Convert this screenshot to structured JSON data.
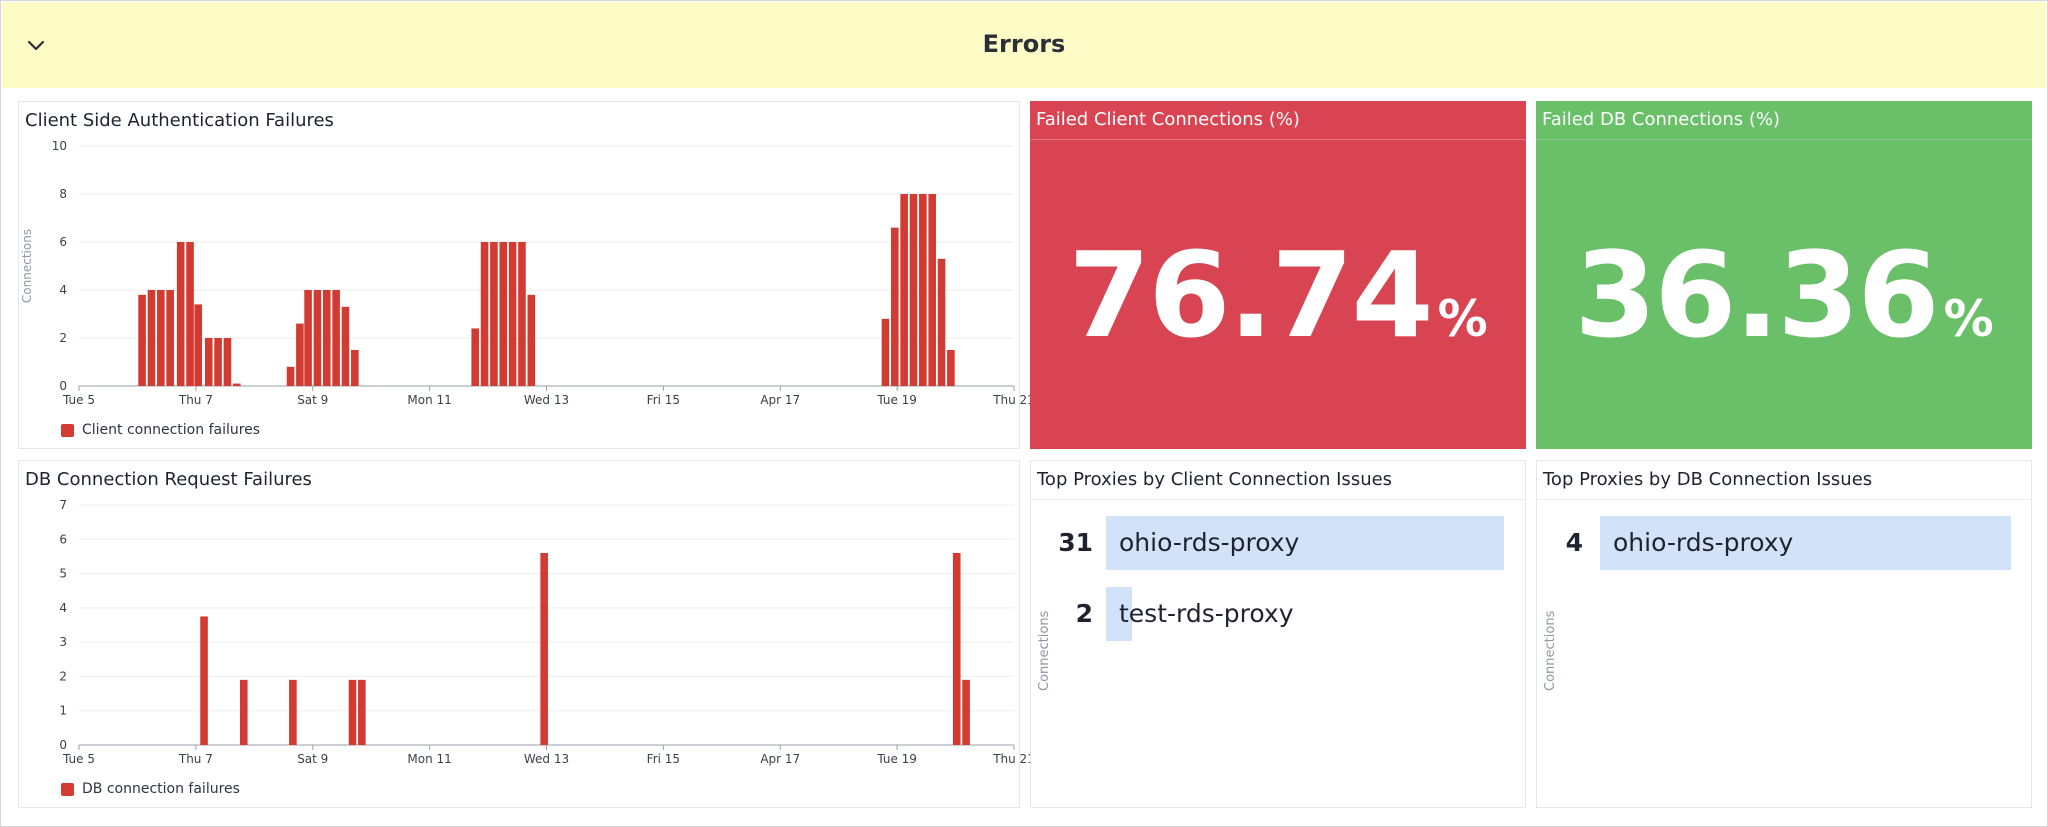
{
  "group": {
    "title": "Errors",
    "collapse_icon": "chevron-down-icon"
  },
  "widgets": {
    "auth_failures": {
      "title": "Client Side Authentication Failures",
      "legend": "Client connection failures"
    },
    "db_failures": {
      "title": "DB Connection Request Failures",
      "legend": "DB connection failures"
    },
    "failed_client_pct": {
      "title": "Failed Client Connections (%)",
      "value": "76.74",
      "unit": "%",
      "color": "#d94452"
    },
    "failed_db_pct": {
      "title": "Failed DB Connections (%)",
      "value": "36.36",
      "unit": "%",
      "color": "#6abf69"
    },
    "top_client": {
      "title": "Top Proxies by Client Connection Issues",
      "axis_label": "Connections",
      "rows": [
        {
          "value": "31",
          "label": "ohio-rds-proxy",
          "fraction": 1.0
        },
        {
          "value": "2",
          "label": "test-rds-proxy",
          "fraction": 0.065
        }
      ]
    },
    "top_db": {
      "title": "Top Proxies by DB Connection Issues",
      "axis_label": "Connections",
      "rows": [
        {
          "value": "4",
          "label": "ohio-rds-proxy",
          "fraction": 1.0
        }
      ]
    }
  },
  "colors": {
    "bar": "#d13b32",
    "header_bg": "#fdfbc6",
    "toplist_bar": "#d2e2f9"
  },
  "chart_data": [
    {
      "type": "bar",
      "title": "Client Side Authentication Failures",
      "ylabel": "Connections",
      "ylim": [
        0,
        10
      ],
      "yticks": [
        0,
        2,
        4,
        6,
        8,
        10
      ],
      "xlim": [
        0,
        16
      ],
      "xticks": [
        {
          "x": 0,
          "label": "Tue 5"
        },
        {
          "x": 2,
          "label": "Thu 7"
        },
        {
          "x": 4,
          "label": "Sat 9"
        },
        {
          "x": 6,
          "label": "Mon 11"
        },
        {
          "x": 8,
          "label": "Wed 13"
        },
        {
          "x": 10,
          "label": "Fri 15"
        },
        {
          "x": 12,
          "label": "Apr 17"
        },
        {
          "x": 14,
          "label": "Tue 19"
        },
        {
          "x": 16,
          "label": "Thu 21"
        }
      ],
      "bar_width": 0.13,
      "series": [
        {
          "name": "Client connection failures",
          "x": [
            1.08,
            1.24,
            1.4,
            1.56,
            1.74,
            1.9,
            2.04,
            2.22,
            2.38,
            2.54,
            2.7,
            3.62,
            3.78,
            3.92,
            4.08,
            4.24,
            4.4,
            4.56,
            4.72,
            6.78,
            6.94,
            7.1,
            7.26,
            7.42,
            7.58,
            7.74,
            13.8,
            13.96,
            14.12,
            14.28,
            14.44,
            14.6,
            14.76,
            14.92
          ],
          "values": [
            3.8,
            4,
            4,
            4,
            6,
            6,
            3.4,
            2,
            2,
            2,
            0.1,
            0.8,
            2.6,
            4,
            4,
            4,
            4,
            3.3,
            1.5,
            2.4,
            6,
            6,
            6,
            6,
            6,
            3.8,
            2.8,
            6.6,
            8,
            8,
            8,
            8,
            5.3,
            1.5
          ]
        }
      ]
    },
    {
      "type": "bar",
      "title": "DB Connection Request Failures",
      "ylim": [
        0,
        7
      ],
      "yticks": [
        0,
        1,
        2,
        3,
        4,
        5,
        6,
        7
      ],
      "xlim": [
        0,
        16
      ],
      "xticks": [
        {
          "x": 0,
          "label": "Tue 5"
        },
        {
          "x": 2,
          "label": "Thu 7"
        },
        {
          "x": 4,
          "label": "Sat 9"
        },
        {
          "x": 6,
          "label": "Mon 11"
        },
        {
          "x": 8,
          "label": "Wed 13"
        },
        {
          "x": 10,
          "label": "Fri 15"
        },
        {
          "x": 12,
          "label": "Apr 17"
        },
        {
          "x": 14,
          "label": "Tue 19"
        },
        {
          "x": 16,
          "label": "Thu 21"
        }
      ],
      "bar_width": 0.13,
      "series": [
        {
          "name": "DB connection failures",
          "x": [
            2.14,
            2.82,
            3.66,
            4.68,
            4.84,
            7.96,
            15.02,
            15.18
          ],
          "values": [
            3.75,
            1.9,
            1.9,
            1.9,
            1.9,
            5.6,
            5.6,
            1.9
          ]
        }
      ]
    }
  ]
}
